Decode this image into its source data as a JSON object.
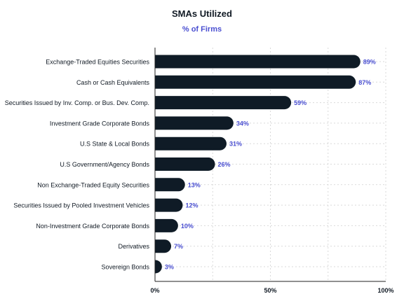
{
  "chart_data": {
    "type": "bar",
    "orientation": "horizontal",
    "title": "SMAs Utilized",
    "subtitle": "% of Firms",
    "categories": [
      "Exchange-Traded Equities Securities",
      "Cash or Cash Equivalents",
      "Securities Issued by Inv. Comp. or Bus. Dev. Comp.",
      "Investment Grade Corporate Bonds",
      "U.S State & Local Bonds",
      "U.S Government/Agency Bonds",
      "Non Exchange-Traded Equity Securities",
      "Securities Issued by Pooled Investment Vehicles",
      "Non-Investment Grade Corporate Bonds",
      "Derivatives",
      "Sovereign Bonds"
    ],
    "values": [
      89,
      87,
      59,
      34,
      31,
      26,
      13,
      12,
      10,
      7,
      3
    ],
    "value_labels": [
      "89%",
      "87%",
      "59%",
      "34%",
      "31%",
      "26%",
      "13%",
      "12%",
      "10%",
      "7%",
      "3%"
    ],
    "xlim": [
      0,
      100
    ],
    "xticks": [
      0,
      50,
      100
    ],
    "xtick_labels": [
      "0%",
      "50%",
      "100%"
    ],
    "grid": true,
    "colors": {
      "bar": "#0f1b26",
      "value_label": "#4a4fd1",
      "grid": "#d9d9d9",
      "axis": "#222222",
      "text": "#111a24"
    }
  }
}
